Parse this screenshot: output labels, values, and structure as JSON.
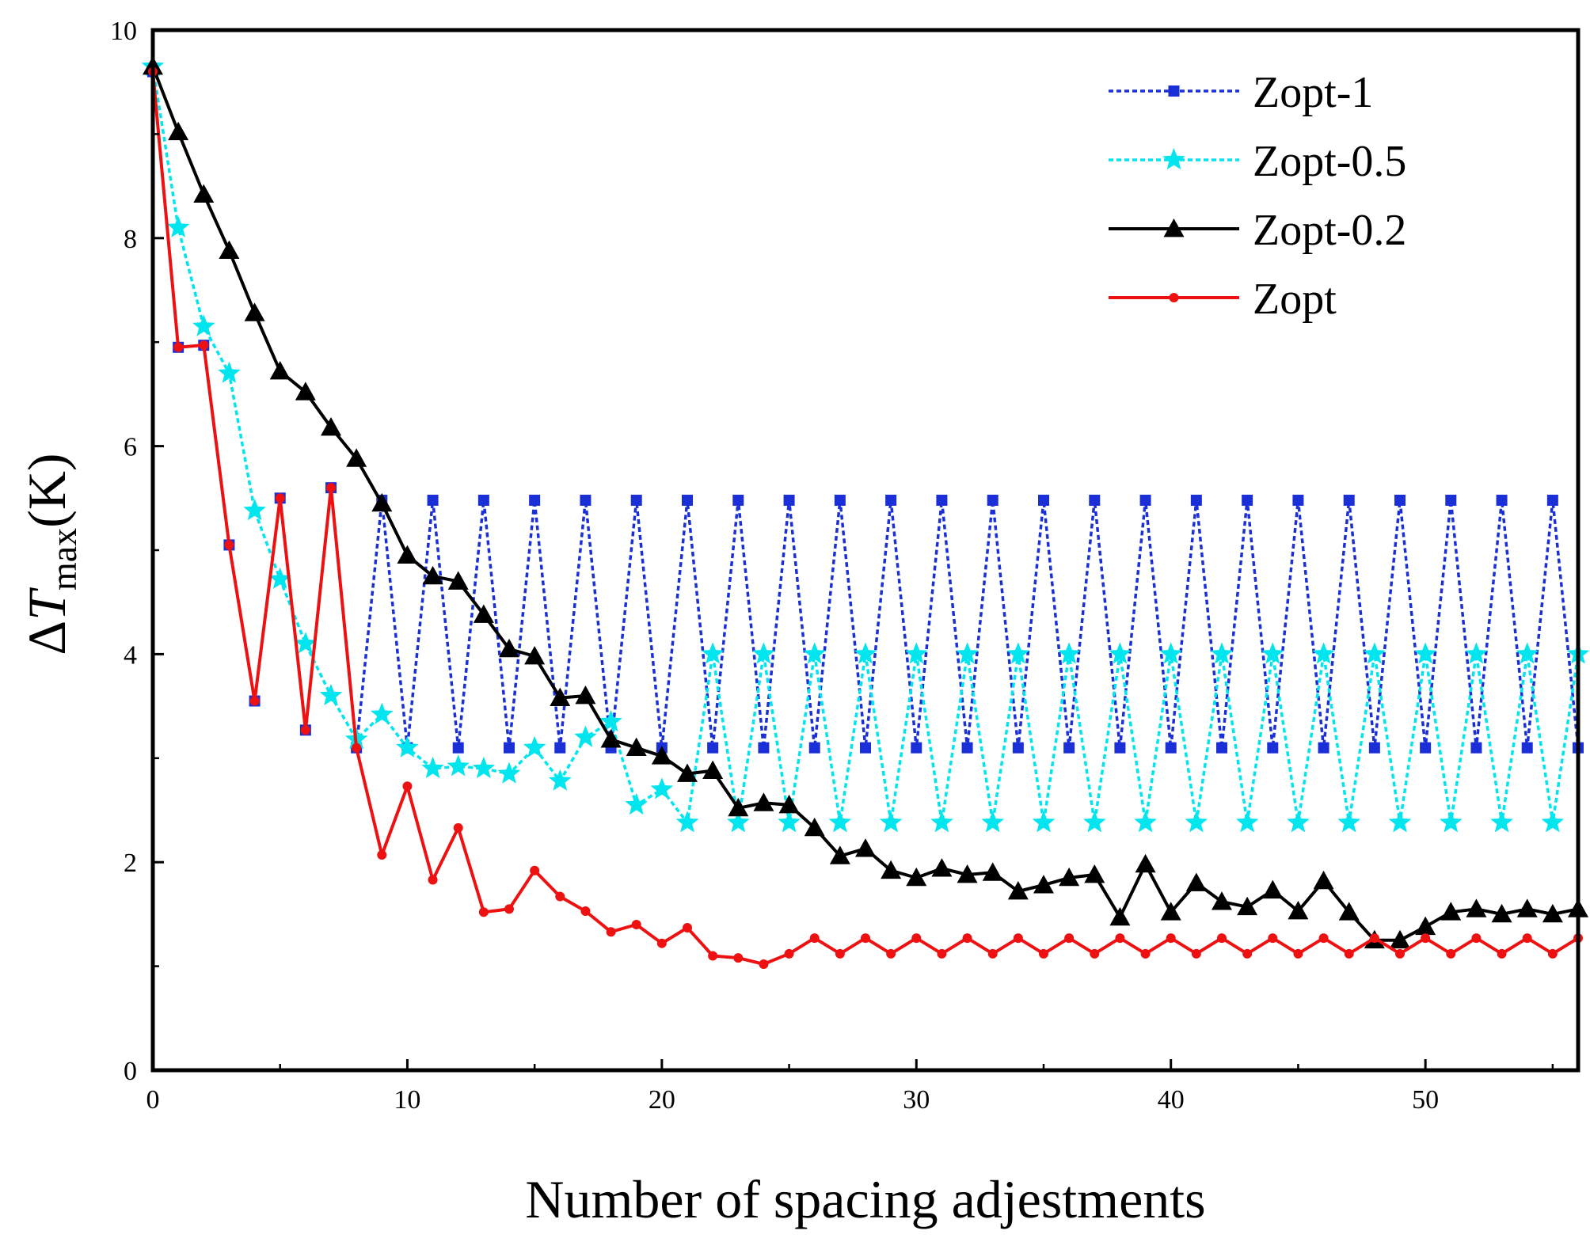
{
  "chart_data": {
    "type": "line",
    "title": "",
    "xlabel": "Number of spacing adjestments",
    "ylabel": {
      "delta": "Δ",
      "symbol": "T",
      "subscript": "max",
      "unit": "(K)"
    },
    "xlim": [
      0,
      56
    ],
    "ylim": [
      0,
      10
    ],
    "xticks": [
      0,
      10,
      20,
      30,
      40,
      50
    ],
    "yticks": [
      0,
      2,
      4,
      6,
      8,
      10
    ],
    "grid": false,
    "legend_position": "top-right",
    "series": [
      {
        "name": "Zopt-1",
        "color": "#1a2fd6",
        "line_style": "dotted",
        "marker": "square",
        "x": [
          0,
          1,
          2,
          3,
          4,
          5,
          6,
          7,
          8,
          9,
          10,
          11,
          12,
          13,
          14,
          15,
          16,
          17,
          18,
          19,
          20,
          21,
          22,
          23,
          24,
          25,
          26,
          27,
          28,
          29,
          30,
          31,
          32,
          33,
          34,
          35,
          36,
          37,
          38,
          39,
          40,
          41,
          42,
          43,
          44,
          45,
          46,
          47,
          48,
          49,
          50,
          51,
          52,
          53,
          54,
          55,
          56
        ],
        "values": [
          9.6,
          6.95,
          6.97,
          5.05,
          3.55,
          5.5,
          3.27,
          5.6,
          3.1,
          5.48,
          3.1,
          5.48,
          3.1,
          5.48,
          3.1,
          5.48,
          3.1,
          5.48,
          3.1,
          5.48,
          3.1,
          5.48,
          3.1,
          5.48,
          3.1,
          5.48,
          3.1,
          5.48,
          3.1,
          5.48,
          3.1,
          5.48,
          3.1,
          5.48,
          3.1,
          5.48,
          3.1,
          5.48,
          3.1,
          5.48,
          3.1,
          5.48,
          3.1,
          5.48,
          3.1,
          5.48,
          3.1,
          5.48,
          3.1,
          5.48,
          3.1,
          5.48,
          3.1,
          5.48,
          3.1,
          5.48,
          3.1
        ]
      },
      {
        "name": "Zopt-0.5",
        "color": "#00e5ee",
        "line_style": "dotted",
        "marker": "star",
        "x": [
          0,
          1,
          2,
          3,
          4,
          5,
          6,
          7,
          8,
          9,
          10,
          11,
          12,
          13,
          14,
          15,
          16,
          17,
          18,
          19,
          20,
          21,
          22,
          23,
          24,
          25,
          26,
          27,
          28,
          29,
          30,
          31,
          32,
          33,
          34,
          35,
          36,
          37,
          38,
          39,
          40,
          41,
          42,
          43,
          44,
          45,
          46,
          47,
          48,
          49,
          50,
          51,
          52,
          53,
          54,
          55,
          56
        ],
        "values": [
          9.65,
          8.1,
          7.15,
          6.7,
          5.38,
          4.72,
          4.1,
          3.6,
          3.18,
          3.42,
          3.1,
          2.9,
          2.92,
          2.9,
          2.85,
          3.1,
          2.78,
          3.2,
          3.35,
          2.55,
          2.7,
          2.38,
          4.0,
          2.38,
          4.0,
          2.38,
          4.0,
          2.38,
          4.0,
          2.38,
          4.0,
          2.38,
          4.0,
          2.38,
          4.0,
          2.38,
          4.0,
          2.38,
          4.0,
          2.38,
          4.0,
          2.38,
          4.0,
          2.38,
          4.0,
          2.38,
          4.0,
          2.38,
          4.0,
          2.38,
          4.0,
          2.38,
          4.0,
          2.38,
          4.0,
          2.38,
          4.0
        ]
      },
      {
        "name": "Zopt-0.2",
        "color": "#000000",
        "line_style": "solid",
        "marker": "triangle",
        "x": [
          0,
          1,
          2,
          3,
          4,
          5,
          6,
          7,
          8,
          9,
          10,
          11,
          12,
          13,
          14,
          15,
          16,
          17,
          18,
          19,
          20,
          21,
          22,
          23,
          24,
          25,
          26,
          27,
          28,
          29,
          30,
          31,
          32,
          33,
          34,
          35,
          36,
          37,
          38,
          39,
          40,
          41,
          42,
          43,
          44,
          45,
          46,
          47,
          48,
          49,
          50,
          51,
          52,
          53,
          54,
          55,
          56
        ],
        "values": [
          9.65,
          9.02,
          8.42,
          7.88,
          7.28,
          6.72,
          6.52,
          6.18,
          5.88,
          5.45,
          4.95,
          4.75,
          4.7,
          4.38,
          4.05,
          3.98,
          3.58,
          3.6,
          3.18,
          3.1,
          3.02,
          2.85,
          2.88,
          2.52,
          2.57,
          2.55,
          2.33,
          2.06,
          2.13,
          1.92,
          1.85,
          1.94,
          1.88,
          1.9,
          1.72,
          1.78,
          1.85,
          1.88,
          1.47,
          1.98,
          1.52,
          1.8,
          1.62,
          1.57,
          1.73,
          1.53,
          1.82,
          1.52,
          1.25,
          1.25,
          1.38,
          1.52,
          1.55,
          1.5,
          1.55,
          1.5,
          1.55
        ]
      },
      {
        "name": "Zopt",
        "color": "#ee1111",
        "line_style": "solid",
        "marker": "circle",
        "x": [
          0,
          1,
          2,
          3,
          4,
          5,
          6,
          7,
          8,
          9,
          10,
          11,
          12,
          13,
          14,
          15,
          16,
          17,
          18,
          19,
          20,
          21,
          22,
          23,
          24,
          25,
          26,
          27,
          28,
          29,
          30,
          31,
          32,
          33,
          34,
          35,
          36,
          37,
          38,
          39,
          40,
          41,
          42,
          43,
          44,
          45,
          46,
          47,
          48,
          49,
          50,
          51,
          52,
          53,
          54,
          55,
          56
        ],
        "values": [
          9.6,
          6.95,
          6.97,
          5.05,
          3.55,
          5.5,
          3.27,
          5.6,
          3.1,
          2.07,
          2.73,
          1.83,
          2.33,
          1.52,
          1.55,
          1.92,
          1.67,
          1.53,
          1.33,
          1.4,
          1.22,
          1.37,
          1.1,
          1.08,
          1.02,
          1.12,
          1.27,
          1.12,
          1.27,
          1.12,
          1.27,
          1.12,
          1.27,
          1.12,
          1.27,
          1.12,
          1.27,
          1.12,
          1.27,
          1.12,
          1.27,
          1.12,
          1.27,
          1.12,
          1.27,
          1.12,
          1.27,
          1.12,
          1.27,
          1.12,
          1.27,
          1.12,
          1.27,
          1.12,
          1.27,
          1.12,
          1.27
        ]
      }
    ]
  }
}
